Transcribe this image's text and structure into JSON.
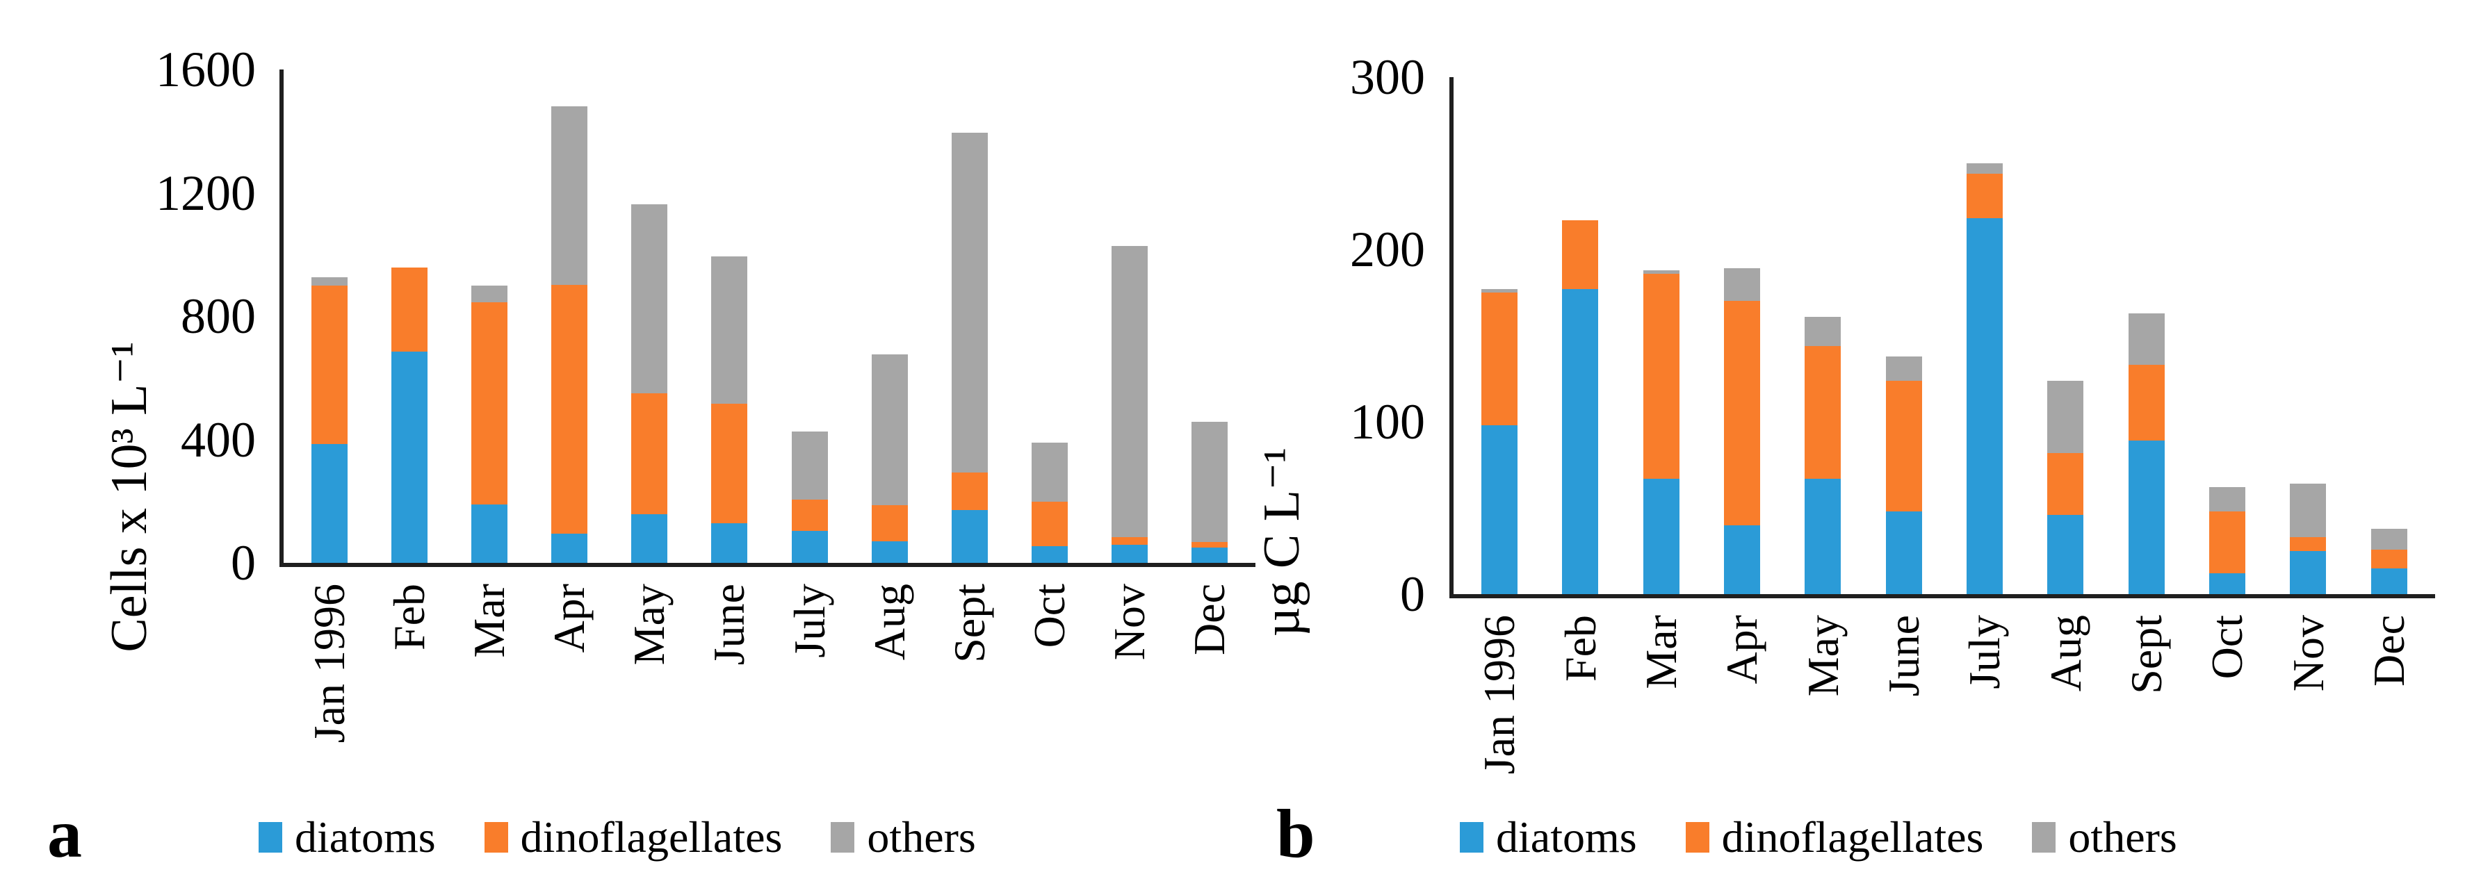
{
  "chart_data": [
    {
      "id": "a",
      "panel_letter": "a",
      "type": "bar",
      "stacked": true,
      "ylabel": "Cells x 10³ L⁻¹",
      "xlabel": "",
      "ylim": [
        0,
        1600
      ],
      "yticks": [
        0,
        400,
        800,
        1200,
        1600
      ],
      "grid": false,
      "legend_position": "bottom",
      "categories": [
        "Jan 1996",
        "Feb",
        "Mar",
        "Apr",
        "May",
        "June",
        "July",
        "Aug",
        "Sept",
        "Oct",
        "Nov",
        "Dec"
      ],
      "series": [
        {
          "name": "diatoms",
          "color": "#2B9BD7",
          "values": [
            385,
            685,
            190,
            95,
            157,
            128,
            103,
            70,
            172,
            54,
            59,
            50
          ]
        },
        {
          "name": "dinoflagellates",
          "color": "#F97D2B",
          "values": [
            515,
            272,
            655,
            807,
            394,
            387,
            101,
            118,
            120,
            145,
            25,
            18
          ]
        },
        {
          "name": "others",
          "color": "#A6A6A6",
          "values": [
            27,
            0,
            55,
            578,
            613,
            478,
            223,
            487,
            1104,
            192,
            944,
            390
          ]
        }
      ]
    },
    {
      "id": "b",
      "panel_letter": "b",
      "type": "bar",
      "stacked": true,
      "ylabel": "µg C L⁻¹",
      "xlabel": "",
      "ylim": [
        0,
        300
      ],
      "yticks": [
        0,
        100,
        200,
        300
      ],
      "grid": false,
      "legend_position": "bottom",
      "categories": [
        "Jan 1996",
        "Feb",
        "Mar",
        "Apr",
        "May",
        "June",
        "July",
        "Aug",
        "Sept",
        "Oct",
        "Nov",
        "Dec"
      ],
      "series": [
        {
          "name": "diatoms",
          "color": "#2B9BD7",
          "values": [
            98,
            177,
            67,
            40,
            67,
            48,
            218,
            46,
            89,
            12,
            25,
            15
          ]
        },
        {
          "name": "dinoflagellates",
          "color": "#F97D2B",
          "values": [
            77,
            40,
            119,
            130,
            77,
            76,
            26,
            36,
            44,
            36,
            8,
            11
          ]
        },
        {
          "name": "others",
          "color": "#A6A6A6",
          "values": [
            2,
            0,
            2,
            19,
            17,
            14,
            6,
            42,
            30,
            14,
            31,
            12
          ]
        }
      ]
    }
  ]
}
